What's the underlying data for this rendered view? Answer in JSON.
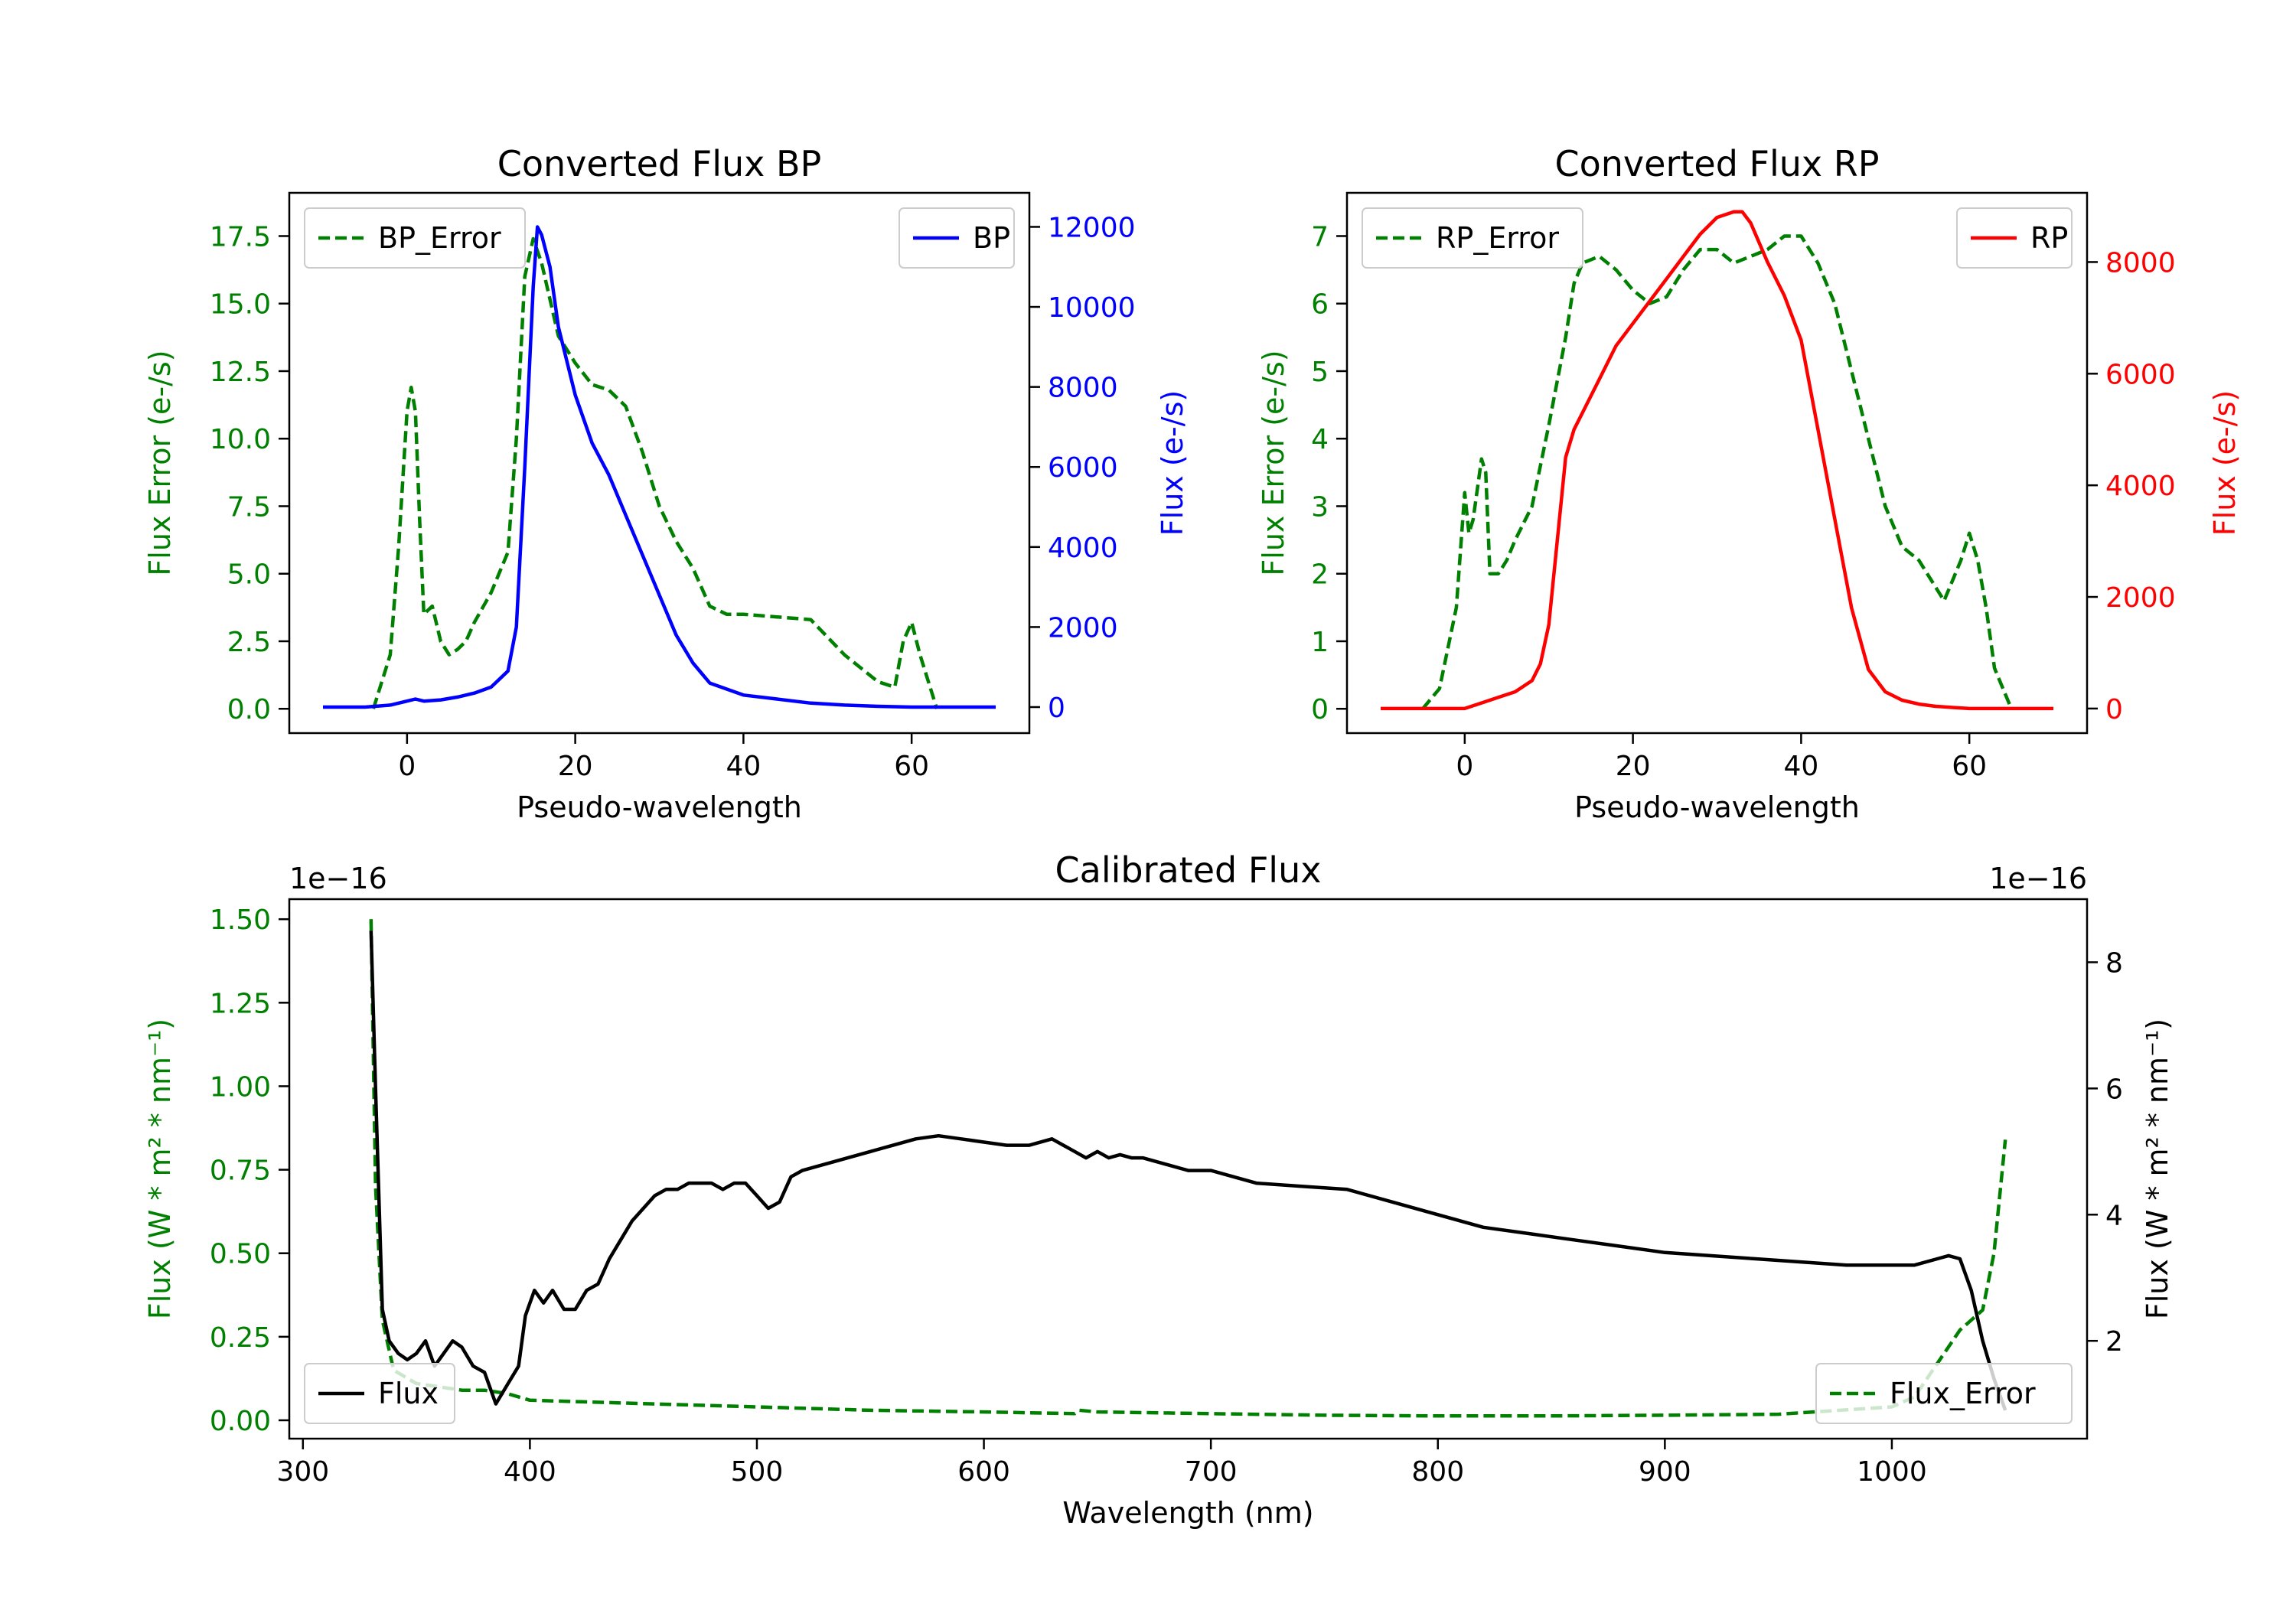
{
  "chart_data": [
    {
      "type": "line",
      "title": "Converted Flux BP",
      "xlabel": "Pseudo-wavelength",
      "ylabel_left": "Flux Error (e-/s)",
      "ylabel_right": "Flux (e-/s)",
      "xlim": [
        -14,
        74
      ],
      "ylim_left": [
        -0.9,
        19.1
      ],
      "ylim_right": [
        -650,
        12850
      ],
      "xticks": [
        0,
        20,
        40,
        60
      ],
      "yticks_left": [
        0.0,
        2.5,
        5.0,
        7.5,
        10.0,
        12.5,
        15.0,
        17.5
      ],
      "yticks_right": [
        0,
        2000,
        4000,
        6000,
        8000,
        10000,
        12000
      ],
      "colors": {
        "left": "#008000",
        "right": "#0000ff"
      },
      "series": [
        {
          "name": "BP_Error",
          "axis": "left",
          "style": "dashed",
          "color": "#008000",
          "legend": "top-left",
          "x": [
            -4,
            -2,
            -1,
            0,
            0.5,
            1,
            1.5,
            2,
            3,
            4,
            5,
            6,
            7,
            8,
            10,
            12,
            13,
            14,
            15,
            16,
            18,
            20,
            22,
            24,
            26,
            28,
            30,
            32,
            34,
            36,
            38,
            40,
            44,
            48,
            52,
            56,
            58,
            59,
            60,
            61,
            63
          ],
          "y": [
            0.0,
            2.0,
            6.0,
            11.0,
            11.9,
            11.0,
            7.0,
            3.5,
            3.8,
            2.5,
            2.0,
            2.2,
            2.5,
            3.2,
            4.3,
            5.8,
            10.0,
            16.0,
            17.4,
            16.5,
            13.8,
            12.8,
            12.0,
            11.8,
            11.2,
            9.5,
            7.5,
            6.2,
            5.2,
            3.8,
            3.5,
            3.5,
            3.4,
            3.3,
            2.0,
            1.0,
            0.8,
            2.5,
            3.2,
            2.0,
            0.0
          ]
        },
        {
          "name": "BP",
          "axis": "right",
          "style": "solid",
          "color": "#0000ff",
          "legend": "top-right",
          "x": [
            -10,
            -5,
            -2,
            0,
            1,
            2,
            4,
            6,
            8,
            10,
            12,
            13,
            14,
            15,
            15.5,
            16,
            17,
            18,
            20,
            22,
            24,
            26,
            28,
            30,
            32,
            34,
            36,
            40,
            44,
            48,
            52,
            56,
            60,
            64,
            70
          ],
          "y": [
            0,
            0,
            50,
            150,
            200,
            150,
            180,
            250,
            350,
            500,
            900,
            2000,
            6000,
            10500,
            12000,
            11800,
            11000,
            9500,
            7800,
            6600,
            5800,
            4800,
            3800,
            2800,
            1800,
            1100,
            600,
            300,
            200,
            100,
            50,
            20,
            0,
            0,
            0
          ]
        }
      ]
    },
    {
      "type": "line",
      "title": "Converted Flux RP",
      "xlabel": "Pseudo-wavelength",
      "ylabel_left": "Flux Error (e-/s)",
      "ylabel_right": "Flux (e-/s)",
      "xlim": [
        -14,
        74
      ],
      "ylim_left": [
        -0.36,
        7.64
      ],
      "ylim_right": [
        -440,
        9240
      ],
      "xticks": [
        0,
        20,
        40,
        60
      ],
      "yticks_left": [
        0,
        1,
        2,
        3,
        4,
        5,
        6,
        7
      ],
      "yticks_right": [
        0,
        2000,
        4000,
        6000,
        8000
      ],
      "colors": {
        "left": "#008000",
        "right": "#ff0000"
      },
      "series": [
        {
          "name": "RP_Error",
          "axis": "left",
          "style": "dashed",
          "color": "#008000",
          "legend": "top-left",
          "x": [
            -5,
            -3,
            -1,
            0,
            0.5,
            1,
            2,
            2.5,
            3,
            4,
            5,
            6,
            8,
            10,
            12,
            13,
            14,
            16,
            18,
            20,
            22,
            24,
            26,
            28,
            30,
            32,
            34,
            36,
            38,
            40,
            42,
            44,
            46,
            48,
            50,
            52,
            54,
            56,
            57,
            58,
            59,
            60,
            61,
            62,
            63,
            65
          ],
          "y": [
            0.0,
            0.3,
            1.5,
            3.2,
            2.6,
            2.8,
            3.7,
            3.5,
            2.0,
            2.0,
            2.2,
            2.5,
            3.0,
            4.2,
            5.5,
            6.3,
            6.6,
            6.7,
            6.5,
            6.2,
            6.0,
            6.1,
            6.5,
            6.8,
            6.8,
            6.6,
            6.7,
            6.8,
            7.0,
            7.0,
            6.6,
            6.0,
            5.0,
            4.0,
            3.0,
            2.4,
            2.2,
            1.8,
            1.6,
            1.9,
            2.2,
            2.6,
            2.2,
            1.5,
            0.6,
            0.0
          ]
        },
        {
          "name": "RP",
          "axis": "right",
          "style": "solid",
          "color": "#ff0000",
          "legend": "top-right",
          "x": [
            -10,
            -5,
            0,
            2,
            4,
            6,
            8,
            9,
            10,
            11,
            12,
            13,
            14,
            16,
            18,
            20,
            22,
            24,
            26,
            28,
            30,
            32,
            33,
            34,
            36,
            38,
            40,
            42,
            44,
            46,
            48,
            50,
            52,
            54,
            56,
            58,
            60,
            65,
            70
          ],
          "y": [
            0,
            0,
            0,
            100,
            200,
            300,
            500,
            800,
            1500,
            3000,
            4500,
            5000,
            5300,
            5900,
            6500,
            6900,
            7300,
            7700,
            8100,
            8500,
            8800,
            8900,
            8900,
            8700,
            8000,
            7400,
            6600,
            5000,
            3400,
            1800,
            700,
            300,
            150,
            80,
            40,
            20,
            0,
            0,
            0
          ]
        }
      ]
    },
    {
      "type": "line",
      "title": "Calibrated Flux",
      "xlabel": "Wavelength (nm)",
      "ylabel_left": "Flux (W * m² * nm⁻¹)",
      "ylabel_right": "Flux (W * m² * nm⁻¹)",
      "offset_left": "1e−16",
      "offset_right": "1e−16",
      "xlim": [
        294,
        1086
      ],
      "ylim_left": [
        -0.055,
        1.56
      ],
      "ylim_right": [
        0.45,
        9.0
      ],
      "xticks": [
        300,
        400,
        500,
        600,
        700,
        800,
        900,
        1000
      ],
      "yticks_left": [
        0.0,
        0.25,
        0.5,
        0.75,
        1.0,
        1.25,
        1.5
      ],
      "yticks_right": [
        2,
        4,
        6,
        8
      ],
      "colors": {
        "left": "#008000",
        "right": "#000000"
      },
      "series": [
        {
          "name": "Flux_Error",
          "axis": "left",
          "style": "dashed",
          "color": "#008000",
          "legend": "bottom-right",
          "x": [
            330,
            332,
            335,
            340,
            350,
            360,
            370,
            380,
            390,
            400,
            450,
            500,
            550,
            600,
            640,
            642,
            650,
            700,
            750,
            800,
            850,
            900,
            950,
            1000,
            1010,
            1020,
            1030,
            1040,
            1045,
            1050
          ],
          "y": [
            1.5,
            0.7,
            0.3,
            0.15,
            0.11,
            0.1,
            0.09,
            0.09,
            0.08,
            0.06,
            0.05,
            0.04,
            0.03,
            0.025,
            0.02,
            0.03,
            0.025,
            0.02,
            0.015,
            0.013,
            0.013,
            0.015,
            0.018,
            0.04,
            0.07,
            0.17,
            0.27,
            0.33,
            0.5,
            0.84
          ]
        },
        {
          "name": "Flux",
          "axis": "right",
          "style": "solid",
          "color": "#000000",
          "legend": "bottom-left",
          "x": [
            330,
            332,
            335,
            338,
            342,
            346,
            350,
            354,
            358,
            362,
            366,
            370,
            375,
            380,
            385,
            390,
            395,
            398,
            402,
            406,
            410,
            415,
            420,
            425,
            430,
            435,
            440,
            445,
            450,
            455,
            460,
            465,
            470,
            475,
            480,
            485,
            490,
            495,
            500,
            505,
            510,
            515,
            520,
            525,
            530,
            540,
            550,
            560,
            570,
            580,
            590,
            600,
            610,
            620,
            630,
            635,
            640,
            645,
            650,
            655,
            660,
            665,
            670,
            675,
            680,
            690,
            700,
            710,
            720,
            740,
            760,
            780,
            800,
            820,
            840,
            860,
            880,
            900,
            920,
            940,
            960,
            980,
            1000,
            1010,
            1020,
            1025,
            1030,
            1035,
            1040,
            1045,
            1050
          ],
          "y": [
            8.5,
            6.0,
            2.5,
            2.0,
            1.8,
            1.7,
            1.8,
            2.0,
            1.6,
            1.8,
            2.0,
            1.9,
            1.6,
            1.5,
            1.0,
            1.3,
            1.6,
            2.4,
            2.8,
            2.6,
            2.8,
            2.5,
            2.5,
            2.8,
            2.9,
            3.3,
            3.6,
            3.9,
            4.1,
            4.3,
            4.4,
            4.4,
            4.5,
            4.5,
            4.5,
            4.4,
            4.5,
            4.5,
            4.3,
            4.1,
            4.2,
            4.6,
            4.7,
            4.75,
            4.8,
            4.9,
            5.0,
            5.1,
            5.2,
            5.25,
            5.2,
            5.15,
            5.1,
            5.1,
            5.2,
            5.1,
            5.0,
            4.9,
            5.0,
            4.9,
            4.95,
            4.9,
            4.9,
            4.85,
            4.8,
            4.7,
            4.7,
            4.6,
            4.5,
            4.45,
            4.4,
            4.2,
            4.0,
            3.8,
            3.7,
            3.6,
            3.5,
            3.4,
            3.35,
            3.3,
            3.25,
            3.2,
            3.2,
            3.2,
            3.3,
            3.35,
            3.3,
            2.8,
            2.0,
            1.4,
            0.9
          ]
        }
      ]
    }
  ]
}
